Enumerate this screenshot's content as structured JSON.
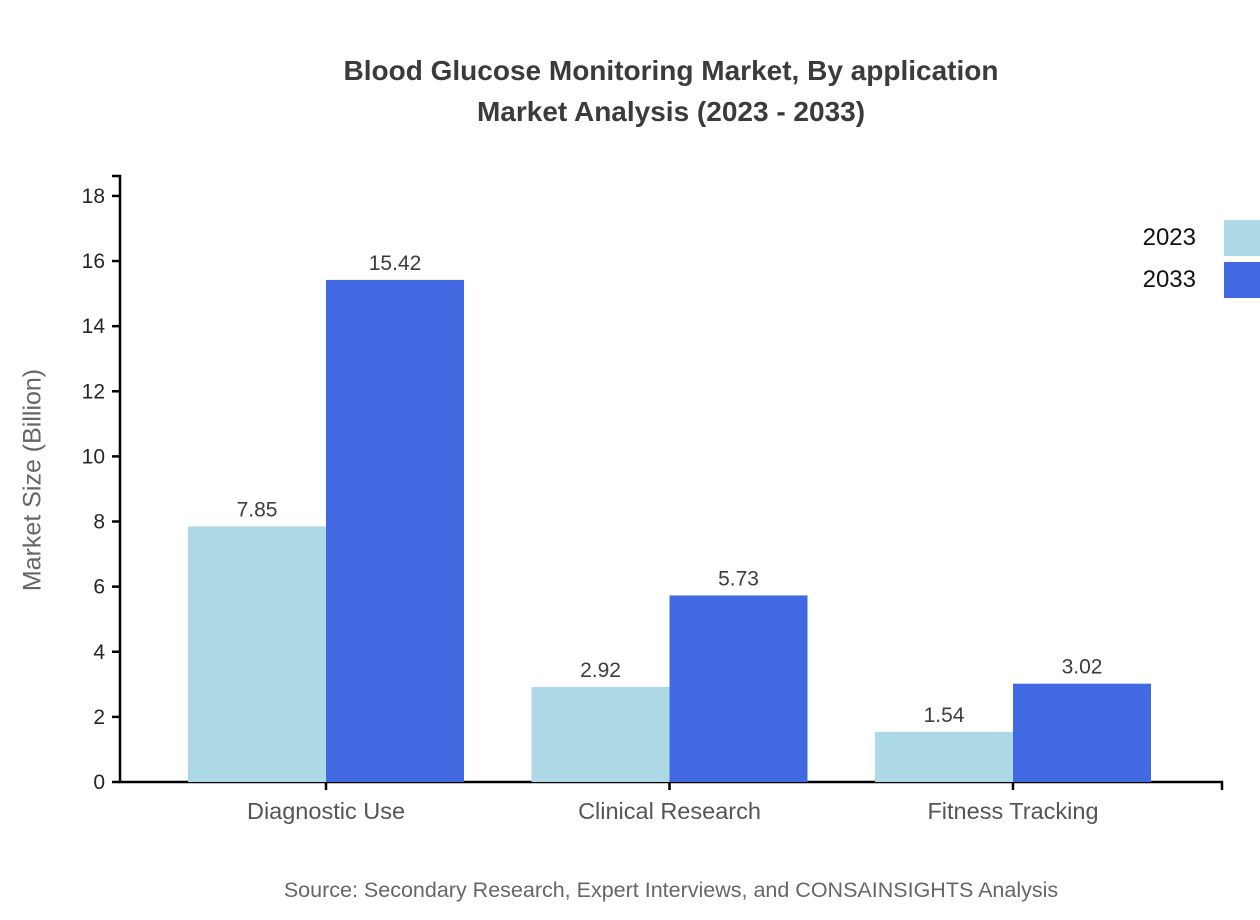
{
  "title": {
    "line1": "Blood Glucose Monitoring Market, By application",
    "line2": "Market Analysis (2023 - 2033)"
  },
  "source": "Source: Secondary Research, Expert Interviews, and CONSAINSIGHTS Analysis",
  "chart_data": {
    "type": "bar",
    "title": "Blood Glucose Monitoring Market, By application",
    "subtitle": "Market Analysis (2023 - 2033)",
    "categories": [
      "Diagnostic Use",
      "Clinical Research",
      "Fitness Tracking"
    ],
    "series": [
      {
        "name": "2023",
        "color": "#ADD8E6",
        "values": [
          7.85,
          2.92,
          1.54
        ]
      },
      {
        "name": "2033",
        "color": "#4169E1",
        "values": [
          15.42,
          5.73,
          3.02
        ]
      }
    ],
    "ylabel": "Market Size (Billion)",
    "xlabel": "",
    "ylim": [
      0,
      18
    ],
    "yticks": [
      0,
      2,
      4,
      6,
      8,
      10,
      12,
      14,
      16,
      18
    ],
    "grid": false,
    "legend_position": "top-right",
    "value_labels": true
  },
  "colors": {
    "axis": "#000000",
    "title_text": "#3b3b3b",
    "y_tick_text": "#262626",
    "category_text": "#555555",
    "value_label_text": "#3d3d3d",
    "muted_text": "#666666",
    "legend_text": "#111111",
    "background": "#ffffff"
  }
}
